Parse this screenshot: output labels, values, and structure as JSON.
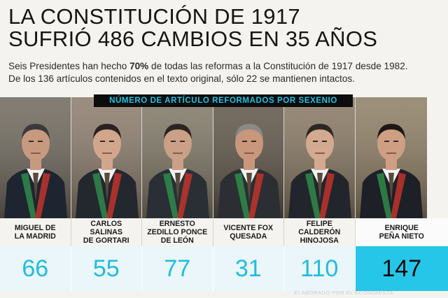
{
  "title": {
    "line1": "LA CONSTITUCIÓN DE 1917",
    "line2": "SUFRIÓ 486 CAMBIOS EN 35 AÑOS"
  },
  "subtitle": {
    "line1_pre": "Seis Presidentes han hecho ",
    "line1_bold": "70%",
    "line1_post": " de todas las reformas a la Constitución de 1917 desde 1982.",
    "line2": "De los 136 artículos contenidos en el texto original, sólo 22 se mantienen intactos."
  },
  "banner": "NÚMERO DE ARTÍCULO REFORMADOS POR SEXENIO",
  "credit": "ELABORADO POR EL ECONOMISTA",
  "colors": {
    "accent": "#26c6e8",
    "value_text": "#20bde0",
    "banner_bg": "#0d0d0d"
  },
  "chart_data": {
    "type": "table",
    "categories": [
      "MIGUEL DE\nLA MADRID",
      "CARLOS\nSALINAS\nDE GORTARI",
      "ERNESTO\nZEDILLO PONCE\nDE LEÓN",
      "VICENTE FOX\nQUESADA",
      "FELIPE\nCALDERÓN\nHINOJOSA",
      "ENRIQUE\nPEÑA NIETO"
    ],
    "values": [
      66,
      55,
      77,
      31,
      110,
      147
    ],
    "highlight_index": 5,
    "title": "NÚMERO DE ARTÍCULO REFORMADOS POR SEXENIO"
  }
}
